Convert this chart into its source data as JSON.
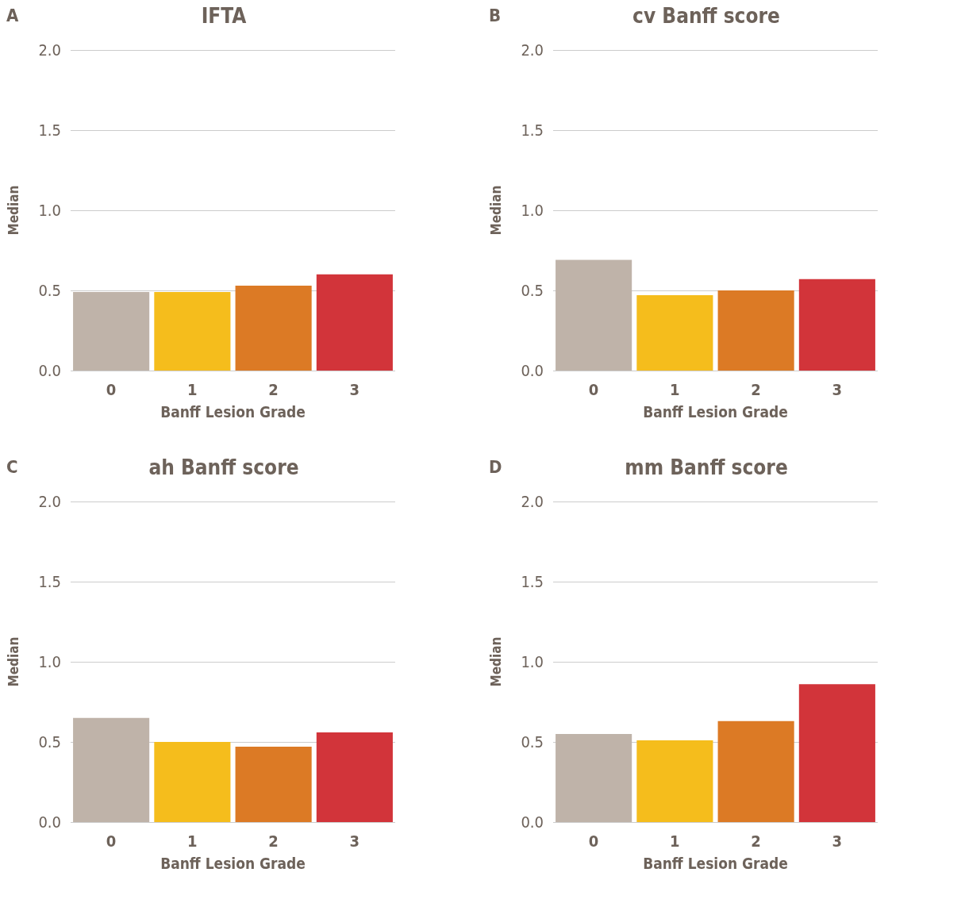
{
  "chart_data": [
    {
      "type": "bar",
      "title": "IFTA",
      "annotations": [
        "A"
      ],
      "xlabel": "Banff Lesion Grade",
      "ylabel": "Median",
      "categories": [
        "0",
        "1",
        "2",
        "3"
      ],
      "values": [
        0.49,
        0.49,
        0.53,
        0.6
      ],
      "colors": [
        "#bfb3a9",
        "#f5bd1c",
        "#dc7a25",
        "#d2343a"
      ],
      "ylim": [
        0,
        2
      ],
      "yticks": [
        {
          "value": 0,
          "label": "0.0"
        },
        {
          "value": 0.5,
          "label": "0.5"
        },
        {
          "value": 1,
          "label": "1.0"
        },
        {
          "value": 1.5,
          "label": "1.5"
        },
        {
          "value": 2,
          "label": "2.0"
        }
      ],
      "grid": "y"
    },
    {
      "type": "bar",
      "title": "cv Banff score",
      "annotations": [
        "B"
      ],
      "xlabel": "Banff Lesion Grade",
      "ylabel": "Median",
      "categories": [
        "0",
        "1",
        "2",
        "3"
      ],
      "values": [
        0.69,
        0.47,
        0.5,
        0.57
      ],
      "colors": [
        "#bfb3a9",
        "#f5bd1c",
        "#dc7a25",
        "#d2343a"
      ],
      "ylim": [
        0,
        2
      ],
      "yticks": [
        {
          "value": 0,
          "label": "0.0"
        },
        {
          "value": 0.5,
          "label": "0.5"
        },
        {
          "value": 1,
          "label": "1.0"
        },
        {
          "value": 1.5,
          "label": "1.5"
        },
        {
          "value": 2,
          "label": "2.0"
        }
      ],
      "grid": "y"
    },
    {
      "type": "bar",
      "title": "ah Banff score",
      "annotations": [
        "C"
      ],
      "xlabel": "Banff Lesion Grade",
      "ylabel": "Median",
      "categories": [
        "0",
        "1",
        "2",
        "3"
      ],
      "values": [
        0.65,
        0.5,
        0.47,
        0.56
      ],
      "colors": [
        "#bfb3a9",
        "#f5bd1c",
        "#dc7a25",
        "#d2343a"
      ],
      "ylim": [
        0,
        2
      ],
      "yticks": [
        {
          "value": 0,
          "label": "0.0"
        },
        {
          "value": 0.5,
          "label": "0.5"
        },
        {
          "value": 1,
          "label": "1.0"
        },
        {
          "value": 1.5,
          "label": "1.5"
        },
        {
          "value": 2,
          "label": "2.0"
        }
      ],
      "grid": "y"
    },
    {
      "type": "bar",
      "title": "mm Banff score",
      "annotations": [
        "D"
      ],
      "xlabel": "Banff Lesion Grade",
      "ylabel": "Median",
      "categories": [
        "0",
        "1",
        "2",
        "3"
      ],
      "values": [
        0.55,
        0.51,
        0.63,
        0.86
      ],
      "colors": [
        "#bfb3a9",
        "#f5bd1c",
        "#dc7a25",
        "#d2343a"
      ],
      "ylim": [
        0,
        2
      ],
      "yticks": [
        {
          "value": 0,
          "label": "0.0"
        },
        {
          "value": 0.5,
          "label": "0.5"
        },
        {
          "value": 1,
          "label": "1.0"
        },
        {
          "value": 1.5,
          "label": "1.5"
        },
        {
          "value": 2,
          "label": "2.0"
        }
      ],
      "grid": "y"
    }
  ]
}
